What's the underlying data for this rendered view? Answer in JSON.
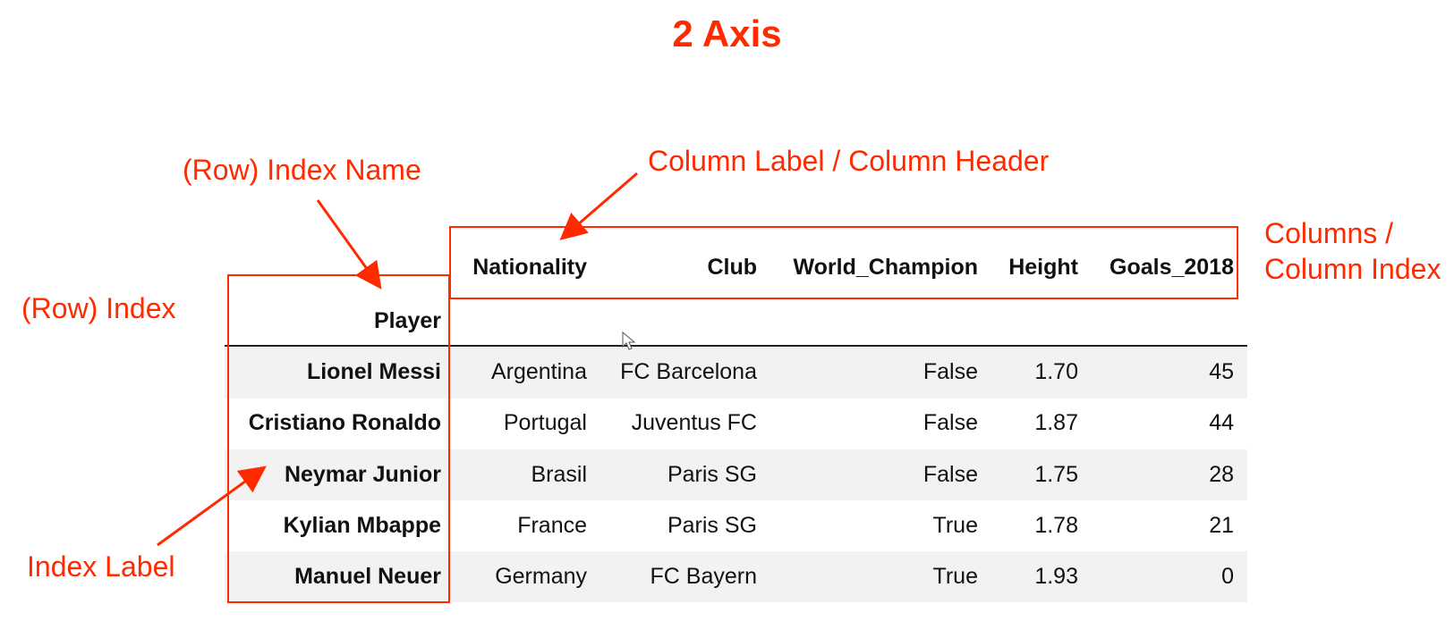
{
  "title": "2 Axis",
  "annotations": {
    "row_index_name": "(Row) Index Name",
    "column_label": "Column Label / Column Header",
    "columns_line1": "Columns /",
    "columns_line2": "Column Index",
    "row_index": "(Row) Index",
    "index_label": "Index Label"
  },
  "colors": {
    "accent": "#ff2a00",
    "row_stripe": "#f2f2f2"
  },
  "table": {
    "index_name": "Player",
    "columns": [
      "Nationality",
      "Club",
      "World_Champion",
      "Height",
      "Goals_2018"
    ],
    "rows": [
      {
        "index": "Lionel Messi",
        "cells": [
          "Argentina",
          "FC Barcelona",
          "False",
          "1.70",
          "45"
        ]
      },
      {
        "index": "Cristiano Ronaldo",
        "cells": [
          "Portugal",
          "Juventus FC",
          "False",
          "1.87",
          "44"
        ]
      },
      {
        "index": "Neymar Junior",
        "cells": [
          "Brasil",
          "Paris SG",
          "False",
          "1.75",
          "28"
        ]
      },
      {
        "index": "Kylian Mbappe",
        "cells": [
          "France",
          "Paris SG",
          "True",
          "1.78",
          "21"
        ]
      },
      {
        "index": "Manuel Neuer",
        "cells": [
          "Germany",
          "FC Bayern",
          "True",
          "1.93",
          "0"
        ]
      }
    ]
  }
}
